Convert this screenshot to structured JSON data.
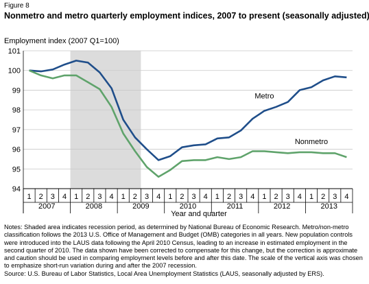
{
  "figure_label": "Figure 8",
  "title": "Nonmetro and metro quarterly employment indices, 2007 to present (seasonally adjusted)",
  "notes": "Notes: Shaded area indicates recession period, as determined by National Bureau of Economic Research. Metro/non-metro classification follows the 2013 U.S. Office of Management and Budget (OMB) categories in all years. New population controls were introduced into the LAUS data following the April 2010 Census, leading to an increase in estimated employment in the second quarter of 2010. The data shown have been corrected to compensate for this change, but the correction is approximate and caution should be used in comparing employment levels before and after this date. The scale of the vertical axis was chosen to emphasize short-run variation during and after the 2007 recession.",
  "source": "Source: U.S. Bureau of Labor Statistics, Local Area Unemployment Statistics (LAUS, seasonally adjusted by ERS).",
  "chart_data": {
    "type": "line",
    "ylabel": "Employment index (2007 Q1=100)",
    "xlabel": "Year and quarter",
    "ylim": [
      94,
      101
    ],
    "yticks": [
      94,
      95,
      96,
      97,
      98,
      99,
      100,
      101
    ],
    "years": [
      "2007",
      "2008",
      "2009",
      "2010",
      "2011",
      "2012",
      "2013"
    ],
    "quarters": [
      "1",
      "2",
      "3",
      "4",
      "1",
      "2",
      "3",
      "4",
      "1",
      "2",
      "3",
      "4",
      "1",
      "2",
      "3",
      "4",
      "1",
      "2",
      "3",
      "4",
      "1",
      "2",
      "3",
      "4",
      "1",
      "2",
      "3",
      "4"
    ],
    "recession": {
      "start": "2008 Q1",
      "end": "2009 Q2"
    },
    "grid": "horizontal",
    "series": [
      {
        "name": "Metro",
        "color": "#1f4e8a",
        "values": [
          100.0,
          99.95,
          100.05,
          100.3,
          100.5,
          100.4,
          99.9,
          99.1,
          97.5,
          96.6,
          96.0,
          95.45,
          95.65,
          96.1,
          96.2,
          96.25,
          96.55,
          96.6,
          96.95,
          97.55,
          97.95,
          98.15,
          98.4,
          99.0,
          99.15,
          99.5,
          99.7,
          99.65
        ]
      },
      {
        "name": "Nonmetro",
        "color": "#5fa36b",
        "values": [
          100.0,
          99.75,
          99.6,
          99.75,
          99.75,
          99.4,
          99.05,
          98.15,
          96.8,
          95.9,
          95.1,
          94.6,
          94.95,
          95.4,
          95.45,
          95.45,
          95.6,
          95.5,
          95.6,
          95.9,
          95.9,
          95.85,
          95.8,
          95.85,
          95.85,
          95.8,
          95.8,
          95.6
        ]
      }
    ]
  }
}
